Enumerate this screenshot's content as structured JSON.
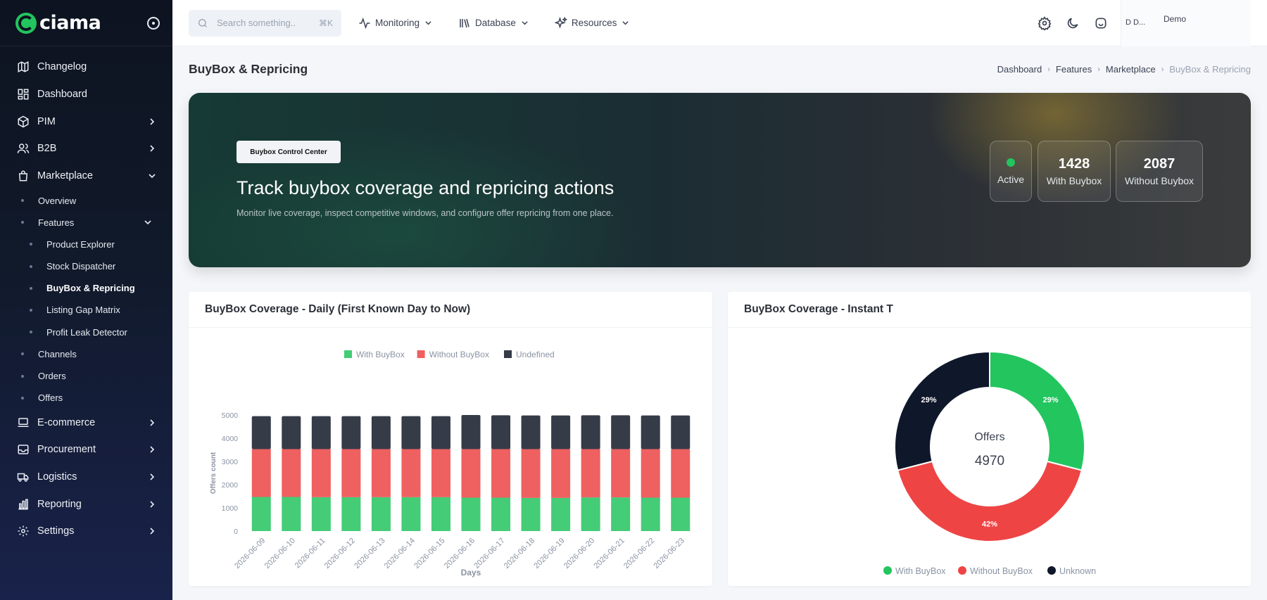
{
  "app": {
    "logo": "ciama"
  },
  "sidebar": {
    "items": [
      {
        "label": "Changelog",
        "icon": "map-icon"
      },
      {
        "label": "Dashboard",
        "icon": "dashboard-icon"
      },
      {
        "label": "PIM",
        "icon": "cube-icon",
        "expandable": true
      },
      {
        "label": "B2B",
        "icon": "users-icon",
        "expandable": true
      },
      {
        "label": "Marketplace",
        "icon": "shopping-bag-icon",
        "expanded": true
      }
    ],
    "marketplace_sub": [
      "Overview",
      "Features"
    ],
    "features_sub": [
      "Product Explorer",
      "Stock Dispatcher",
      "BuyBox & Repricing",
      "Listing Gap Matrix",
      "Profit Leak Detector"
    ],
    "marketplace_sub_after": [
      "Channels",
      "Orders",
      "Offers"
    ],
    "bottom_items": [
      {
        "label": "E-commerce",
        "icon": "laptop-icon"
      },
      {
        "label": "Procurement",
        "icon": "inbox-icon"
      },
      {
        "label": "Logistics",
        "icon": "truck-icon"
      },
      {
        "label": "Reporting",
        "icon": "bar-chart-icon"
      },
      {
        "label": "Settings",
        "icon": "gear-icon"
      }
    ]
  },
  "topbar": {
    "search_placeholder": "Search something..",
    "search_shortcut": "⌘K",
    "menus": [
      "Monitoring",
      "Database",
      "Resources"
    ],
    "user_initials": "D D...",
    "user_name": "Demo"
  },
  "page": {
    "title": "BuyBox & Repricing",
    "breadcrumb": [
      "Dashboard",
      "Features",
      "Marketplace",
      "BuyBox & Repricing"
    ]
  },
  "hero": {
    "badge": "Buybox Control Center",
    "title": "Track buybox coverage and repricing actions",
    "subtitle": "Monitor live coverage, inspect competitive windows, and configure offer repricing from one place.",
    "status_label": "Active",
    "with_buybox_value": "1428",
    "with_buybox_label": "With Buybox",
    "without_buybox_value": "2087",
    "without_buybox_label": "Without Buybox"
  },
  "cards": {
    "left_title": "BuyBox Coverage - Daily (First Known Day to Now)",
    "right_title": "BuyBox Coverage - Instant T"
  },
  "colors": {
    "with": "#44cc77",
    "without": "#ef6060",
    "undefined": "#363b48",
    "green": "#22c55e",
    "red": "#ef4444",
    "dark": "#0f172a"
  },
  "chart_data": [
    {
      "type": "bar",
      "stacked": true,
      "title": "BuyBox Coverage - Daily (First Known Day to Now)",
      "xlabel": "Days",
      "ylabel": "Offers count",
      "ylim": [
        0,
        5000
      ],
      "yticks": [
        0,
        1000,
        2000,
        3000,
        4000,
        5000
      ],
      "legend": "top-center",
      "categories": [
        "2026-06-09",
        "2026-06-10",
        "2026-06-11",
        "2026-06-12",
        "2026-06-13",
        "2026-06-14",
        "2026-06-15",
        "2026-06-16",
        "2026-06-17",
        "2026-06-18",
        "2026-06-19",
        "2026-06-20",
        "2026-06-21",
        "2026-06-22",
        "2026-06-23"
      ],
      "series": [
        {
          "name": "With BuyBox",
          "values": [
            1470,
            1470,
            1460,
            1460,
            1460,
            1460,
            1460,
            1440,
            1440,
            1430,
            1430,
            1450,
            1450,
            1440,
            1440
          ]
        },
        {
          "name": "Without BuyBox",
          "values": [
            2060,
            2060,
            2070,
            2070,
            2070,
            2070,
            2070,
            2090,
            2090,
            2100,
            2100,
            2080,
            2080,
            2090,
            2090
          ]
        },
        {
          "name": "Undefined",
          "values": [
            1420,
            1420,
            1420,
            1420,
            1420,
            1420,
            1420,
            1470,
            1460,
            1450,
            1450,
            1460,
            1460,
            1450,
            1450
          ]
        }
      ]
    },
    {
      "type": "pie",
      "donut": true,
      "title": "BuyBox Coverage - Instant T",
      "center_label": "Offers",
      "center_value": "4970",
      "legend": "bottom-center",
      "labels": [
        "With BuyBox",
        "Without BuyBox",
        "Unknown"
      ],
      "values": [
        29,
        42,
        29
      ],
      "value_labels": [
        "29%",
        "42%",
        "29%"
      ]
    }
  ]
}
